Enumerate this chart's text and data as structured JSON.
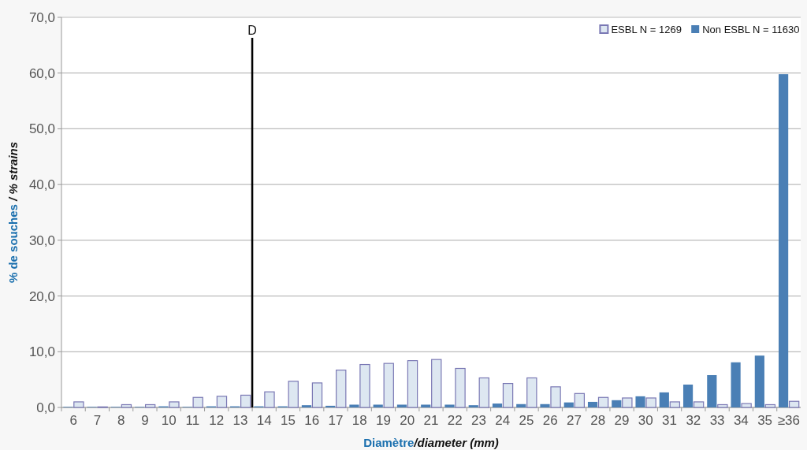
{
  "chart_data": {
    "type": "bar",
    "xlabel": "Diamètre/diameter (mm)",
    "ylabel": "% de souches / % strains",
    "x": [
      6,
      7,
      8,
      9,
      10,
      11,
      12,
      13,
      14,
      15,
      16,
      17,
      18,
      19,
      20,
      21,
      22,
      23,
      24,
      25,
      26,
      27,
      28,
      29,
      30,
      31,
      32,
      33,
      34,
      35,
      36
    ],
    "xlim": [
      5.5,
      36.5
    ],
    "xticks": [
      6,
      7,
      8,
      9,
      10,
      11,
      12,
      13,
      14,
      15,
      16,
      17,
      18,
      19,
      20,
      21,
      22,
      23,
      24,
      25,
      26,
      27,
      28,
      29,
      30,
      31,
      32,
      33,
      34,
      35,
      {
        "value": 36,
        "label": "≥36"
      }
    ],
    "series": [
      {
        "name": "Non ESBL N = 11630",
        "color": "#4a7fb5",
        "values": [
          0.1,
          0.1,
          0.1,
          0.1,
          0.2,
          0.1,
          0.2,
          0.2,
          0.2,
          0.2,
          0.4,
          0.3,
          0.5,
          0.5,
          0.5,
          0.5,
          0.5,
          0.4,
          0.7,
          0.6,
          0.6,
          0.9,
          1.0,
          1.3,
          2.0,
          2.7,
          4.1,
          5.8,
          8.1,
          9.3,
          59.8
        ]
      },
      {
        "name": "ESBL N = 1269",
        "color": "#dde7f1",
        "values": [
          1.0,
          0.1,
          0.5,
          0.5,
          1.0,
          1.8,
          2.0,
          2.2,
          2.8,
          4.7,
          4.4,
          6.7,
          7.7,
          7.9,
          8.4,
          8.6,
          7.0,
          5.3,
          4.3,
          5.3,
          3.7,
          2.5,
          1.8,
          1.7,
          1.7,
          1.0,
          1.0,
          0.5,
          0.7,
          0.5,
          1.1
        ]
      }
    ],
    "ylim": [
      0,
      70
    ],
    "yticks": [
      {
        "value": 0,
        "label": "0,0"
      },
      {
        "value": 10,
        "label": "10,0"
      },
      {
        "value": 20,
        "label": "20,0"
      },
      {
        "value": 30,
        "label": "30,0"
      },
      {
        "value": 40,
        "label": "40,0"
      },
      {
        "value": 50,
        "label": "50,0"
      },
      {
        "value": 60,
        "label": "60,0"
      },
      {
        "value": 70,
        "label": "70,0"
      }
    ],
    "grid": "y",
    "legend": "top right",
    "ref_lines": [
      {
        "axis": "x",
        "value": 13.5,
        "label": "D",
        "color": "#000000"
      }
    ]
  }
}
